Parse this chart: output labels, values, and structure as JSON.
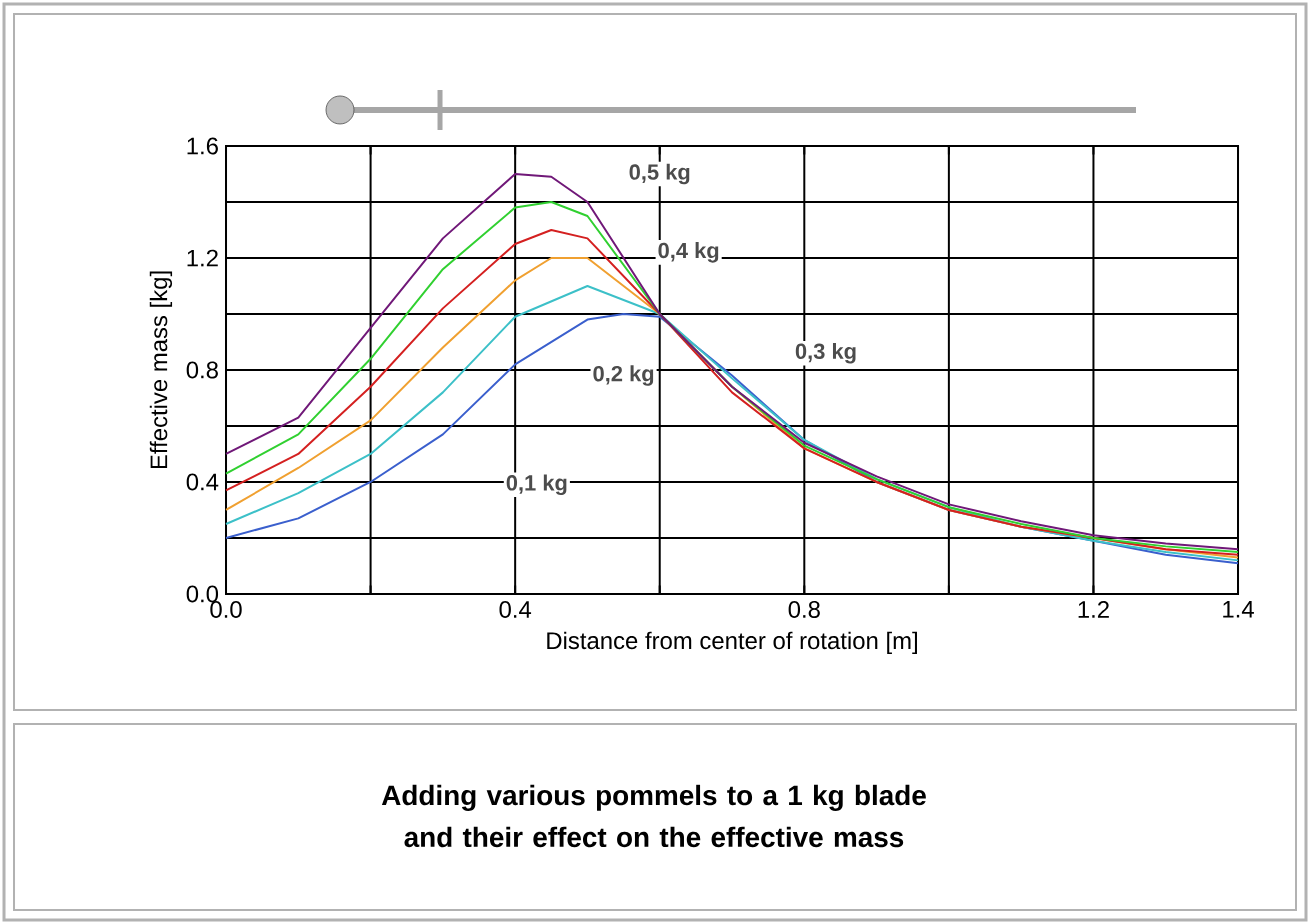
{
  "chart_data": {
    "type": "line",
    "title": "Adding various pommels to a 1 kg blade and their effect on the effective mass",
    "xlabel": "Distance from center of rotation [m]",
    "ylabel": "Effective mass [kg]",
    "xlim": [
      0,
      1.4
    ],
    "ylim": [
      0,
      1.6
    ],
    "xticks": [
      {
        "value": 0,
        "label": "0.0"
      },
      {
        "value": 0.2,
        "label": null
      },
      0.4,
      {
        "value": 0.6,
        "label": null
      },
      0.8,
      {
        "value": 1.0,
        "label": null
      },
      1.2,
      1.4
    ],
    "yticks": [
      {
        "value": 0,
        "label": "0.0"
      },
      {
        "value": 0.2,
        "label": null
      },
      0.4,
      {
        "value": 0.6,
        "label": null
      },
      0.8,
      {
        "value": 1.0,
        "label": null
      },
      1.2,
      {
        "value": 1.4,
        "label": null
      },
      1.6
    ],
    "grid": true,
    "marker": "none",
    "line_style": "solid",
    "series": [
      {
        "color": "#3a5fcd",
        "x": [
          0,
          0.1,
          0.2,
          0.3,
          0.4,
          0.5,
          0.55,
          0.6,
          0.7,
          0.8,
          0.9,
          1.0,
          1.1,
          1.2,
          1.3,
          1.4
        ],
        "values": [
          0.2,
          0.27,
          0.4,
          0.57,
          0.82,
          0.98,
          1.0,
          0.99,
          0.78,
          0.55,
          0.4,
          0.3,
          0.24,
          0.19,
          0.14,
          0.11
        ]
      },
      {
        "color": "#3cc0c8",
        "x": [
          0,
          0.1,
          0.2,
          0.3,
          0.4,
          0.5,
          0.6,
          0.7,
          0.8,
          0.9,
          1.0,
          1.1,
          1.2,
          1.3,
          1.4
        ],
        "values": [
          0.25,
          0.36,
          0.5,
          0.72,
          0.99,
          1.1,
          1.0,
          0.77,
          0.55,
          0.41,
          0.31,
          0.24,
          0.19,
          0.15,
          0.12
        ]
      },
      {
        "color": "#f0a030",
        "x": [
          0,
          0.1,
          0.2,
          0.3,
          0.4,
          0.45,
          0.5,
          0.6,
          0.7,
          0.8,
          0.9,
          1.0,
          1.1,
          1.2,
          1.3,
          1.4
        ],
        "values": [
          0.3,
          0.45,
          0.62,
          0.88,
          1.12,
          1.2,
          1.2,
          1.0,
          0.74,
          0.52,
          0.4,
          0.3,
          0.24,
          0.2,
          0.16,
          0.13
        ]
      },
      {
        "color": "#d42020",
        "x": [
          0,
          0.1,
          0.2,
          0.3,
          0.4,
          0.45,
          0.5,
          0.6,
          0.7,
          0.8,
          0.9,
          1.0,
          1.1,
          1.2,
          1.3,
          1.4
        ],
        "values": [
          0.37,
          0.5,
          0.74,
          1.02,
          1.25,
          1.3,
          1.27,
          1.0,
          0.72,
          0.52,
          0.4,
          0.3,
          0.24,
          0.2,
          0.16,
          0.14
        ]
      },
      {
        "color": "#30d030",
        "x": [
          0,
          0.1,
          0.2,
          0.3,
          0.4,
          0.45,
          0.5,
          0.6,
          0.7,
          0.8,
          0.9,
          1.0,
          1.1,
          1.2,
          1.3,
          1.4
        ],
        "values": [
          0.43,
          0.57,
          0.84,
          1.16,
          1.38,
          1.4,
          1.35,
          1.0,
          0.74,
          0.53,
          0.41,
          0.31,
          0.25,
          0.2,
          0.17,
          0.15
        ]
      },
      {
        "color": "#701878",
        "x": [
          0,
          0.1,
          0.2,
          0.3,
          0.4,
          0.45,
          0.5,
          0.6,
          0.7,
          0.8,
          0.9,
          1.0,
          1.1,
          1.2,
          1.3,
          1.4
        ],
        "values": [
          0.5,
          0.63,
          0.95,
          1.27,
          1.5,
          1.49,
          1.4,
          1.0,
          0.74,
          0.54,
          0.42,
          0.32,
          0.26,
          0.21,
          0.18,
          0.16
        ]
      }
    ],
    "annotations": [
      {
        "text": "0,5 kg",
        "x": 0.6,
        "y": 1.5
      },
      {
        "text": "0,4 kg",
        "x": 0.64,
        "y": 1.22
      },
      {
        "text": "0,3 kg",
        "x": 0.83,
        "y": 0.86
      },
      {
        "text": "0,2 kg",
        "x": 0.55,
        "y": 0.78
      },
      {
        "text": "0,1 kg",
        "x": 0.43,
        "y": 0.39
      }
    ]
  }
}
